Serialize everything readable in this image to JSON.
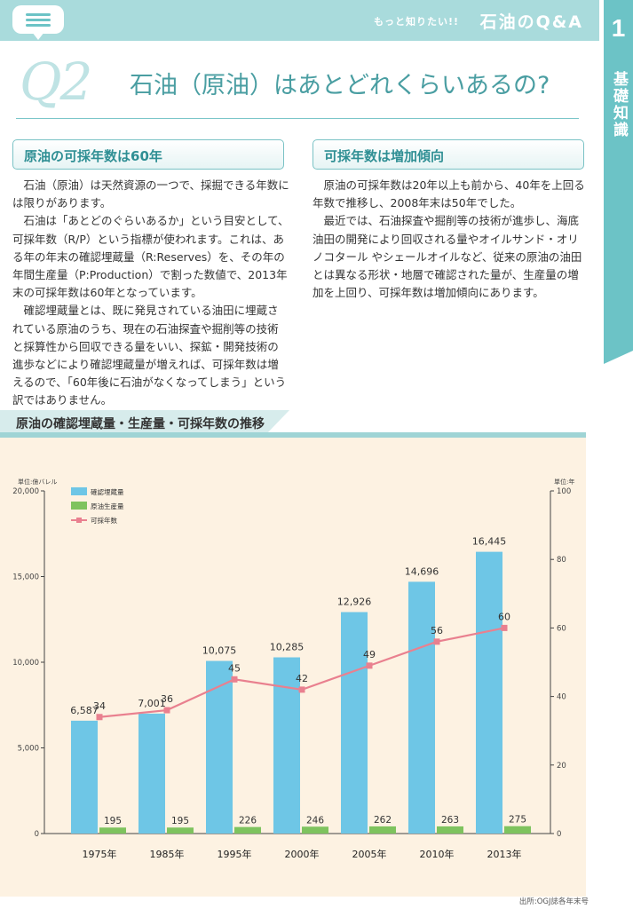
{
  "header": {
    "tagline": "もっと知りたい!!",
    "section_title": "石油のQ&A",
    "menu_icon": "menu-chat-icon"
  },
  "side_tab": {
    "number": "1",
    "label": "基礎知識"
  },
  "question": {
    "number": "Q2",
    "title": "石油（原油）はあとどれくらいあるの?"
  },
  "left_section": {
    "heading": "原油の可採年数は60年",
    "paragraphs": [
      "石油（原油）は天然資源の一つで、採掘できる年数には限りがあります。",
      "石油は「あとどのぐらいあるか」という目安として、可採年数（R/P）という指標が使われます。これは、ある年の年末の確認埋蔵量（R:Reserves）を、その年の年間生産量（P:Production）で割った数値で、2013年末の可採年数は60年となっています。",
      "確認埋蔵量とは、既に発見されている油田に埋蔵されている原油のうち、現在の石油探査や掘削等の技術と採算性から回収できる量をいい、探鉱・開発技術の進歩などにより確認埋蔵量が増えれば、可採年数は増えるので、「60年後に石油がなくなってしまう」という訳ではありません。"
    ]
  },
  "right_section": {
    "heading": "可採年数は増加傾向",
    "paragraphs": [
      "原油の可採年数は20年以上も前から、40年を上回る年数で推移し、2008年末は50年でした。",
      "最近では、石油探査や掘削等の技術が進歩し、海底油田の開発により回収される量やオイルサンド・オリノコタール やシェールオイルなど、従来の原油の油田とは異なる形状・地層で確認された量が、生産量の増加を上回り、可採年数は増加傾向にあります。"
    ]
  },
  "chart_heading": "原油の確認埋蔵量・生産量・可採年数の推移",
  "source": "出所:OGJ誌各年末号",
  "colors": {
    "reserves": "#6ec6e6",
    "production": "#7ec35e",
    "years": "#e9808f",
    "accent": "#6cc3c6"
  },
  "chart_data": {
    "type": "bar",
    "categories": [
      "1975年",
      "1985年",
      "1995年",
      "2000年",
      "2005年",
      "2010年",
      "2013年"
    ],
    "left_axis": {
      "unit": "単位:億バレル",
      "ylim": [
        0,
        20000
      ],
      "ticks": [
        "0",
        "5,000",
        "10,000",
        "15,000",
        "20,000"
      ]
    },
    "right_axis": {
      "unit": "単位:年",
      "ylim": [
        0,
        100
      ],
      "ticks": [
        "0",
        "20",
        "40",
        "60",
        "80",
        "100"
      ]
    },
    "legend_position": "top-left",
    "series": [
      {
        "name": "確認埋蔵量",
        "type": "bar",
        "axis": "left",
        "values": [
          6587,
          7001,
          10075,
          10285,
          12926,
          14696,
          16445
        ],
        "labels": [
          "6,587",
          "7,001",
          "10,075",
          "10,285",
          "12,926",
          "14,696",
          "16,445"
        ]
      },
      {
        "name": "原油生産量",
        "type": "bar",
        "axis": "left",
        "values": [
          195,
          195,
          226,
          246,
          262,
          263,
          275
        ],
        "labels": [
          "195",
          "195",
          "226",
          "246",
          "262",
          "263",
          "275"
        ]
      },
      {
        "name": "可採年数",
        "type": "line",
        "axis": "right",
        "values": [
          34,
          36,
          45,
          42,
          49,
          56,
          60
        ],
        "labels": [
          "34",
          "36",
          "45",
          "42",
          "49",
          "56",
          "60"
        ]
      }
    ]
  }
}
